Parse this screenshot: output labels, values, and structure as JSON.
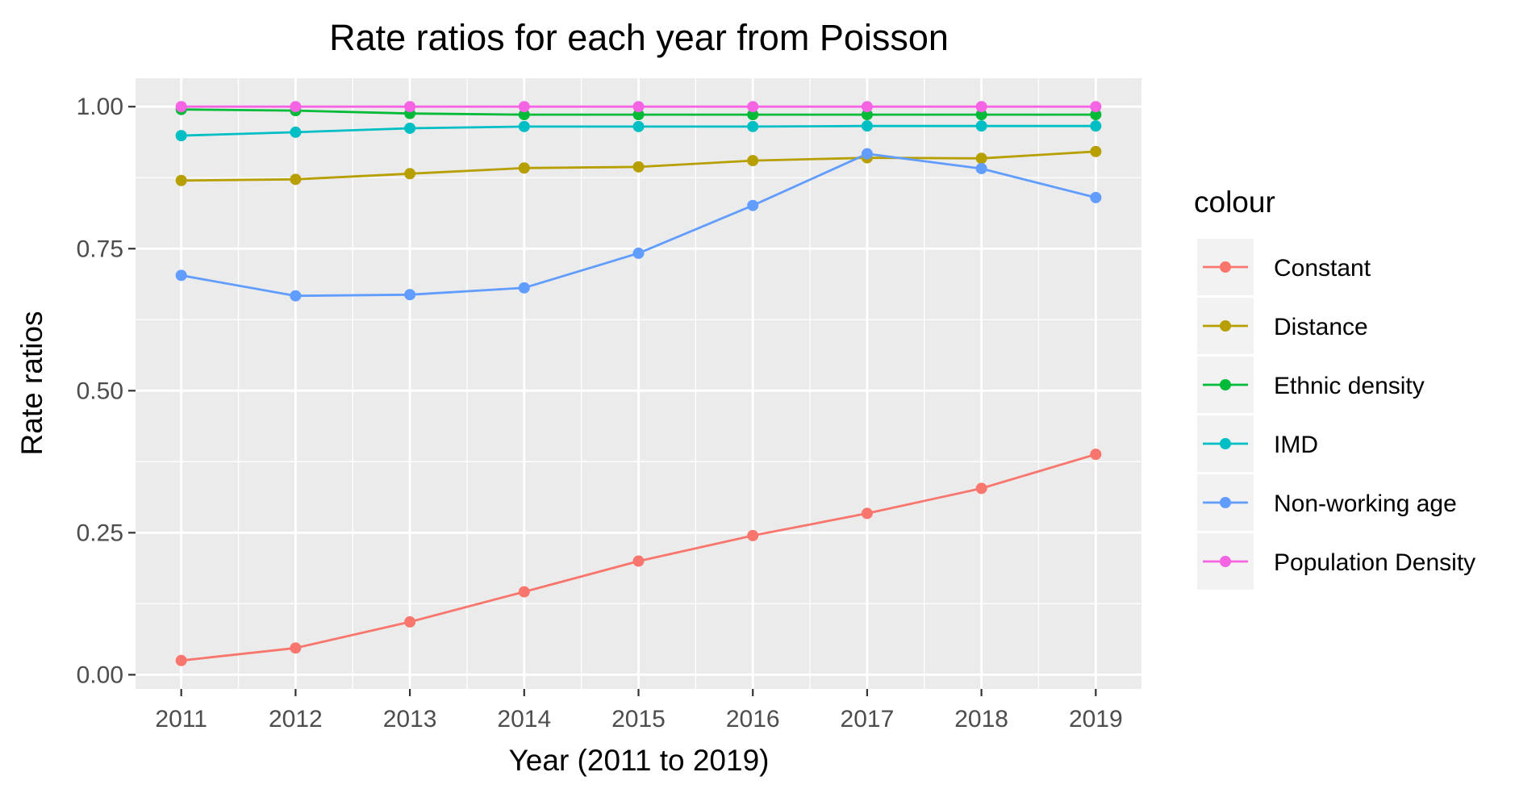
{
  "chart_data": {
    "type": "line",
    "title": "Rate ratios for each year from Poisson",
    "xlabel": "Year (2011 to 2019)",
    "ylabel": "Rate ratios",
    "x": [
      2011,
      2012,
      2013,
      2014,
      2015,
      2016,
      2017,
      2018,
      2019
    ],
    "x_tick_labels": [
      "2011",
      "2012",
      "2013",
      "2014",
      "2015",
      "2016",
      "2017",
      "2018",
      "2019"
    ],
    "y_ticks": [
      0.0,
      0.25,
      0.5,
      0.75,
      1.0
    ],
    "y_tick_labels": [
      "0.00",
      "0.25",
      "0.50",
      "0.75",
      "1.00"
    ],
    "ylim": [
      -0.025,
      1.05
    ],
    "xlim": [
      2010.6,
      2019.4
    ],
    "grid": true,
    "legend_title": "colour",
    "legend_position": "right",
    "series": [
      {
        "name": "Constant",
        "color": "#F8766D",
        "values": [
          0.025,
          0.047,
          0.093,
          0.146,
          0.2,
          0.245,
          0.284,
          0.328,
          0.388
        ]
      },
      {
        "name": "Distance",
        "color": "#B79F00",
        "values": [
          0.87,
          0.872,
          0.882,
          0.892,
          0.894,
          0.905,
          0.91,
          0.909,
          0.921
        ]
      },
      {
        "name": "Ethnic density",
        "color": "#00BA38",
        "values": [
          0.995,
          0.993,
          0.988,
          0.986,
          0.986,
          0.986,
          0.986,
          0.986,
          0.986
        ]
      },
      {
        "name": "IMD",
        "color": "#00BFC4",
        "values": [
          0.949,
          0.955,
          0.962,
          0.965,
          0.965,
          0.965,
          0.966,
          0.966,
          0.966
        ]
      },
      {
        "name": "Non-working age",
        "color": "#619CFF",
        "values": [
          0.703,
          0.667,
          0.669,
          0.681,
          0.742,
          0.826,
          0.917,
          0.891,
          0.84
        ]
      },
      {
        "name": "Population Density",
        "color": "#F564E3",
        "values": [
          1.0,
          1.0,
          1.0,
          1.0,
          1.0,
          1.0,
          1.0,
          1.0,
          1.0
        ]
      }
    ]
  }
}
